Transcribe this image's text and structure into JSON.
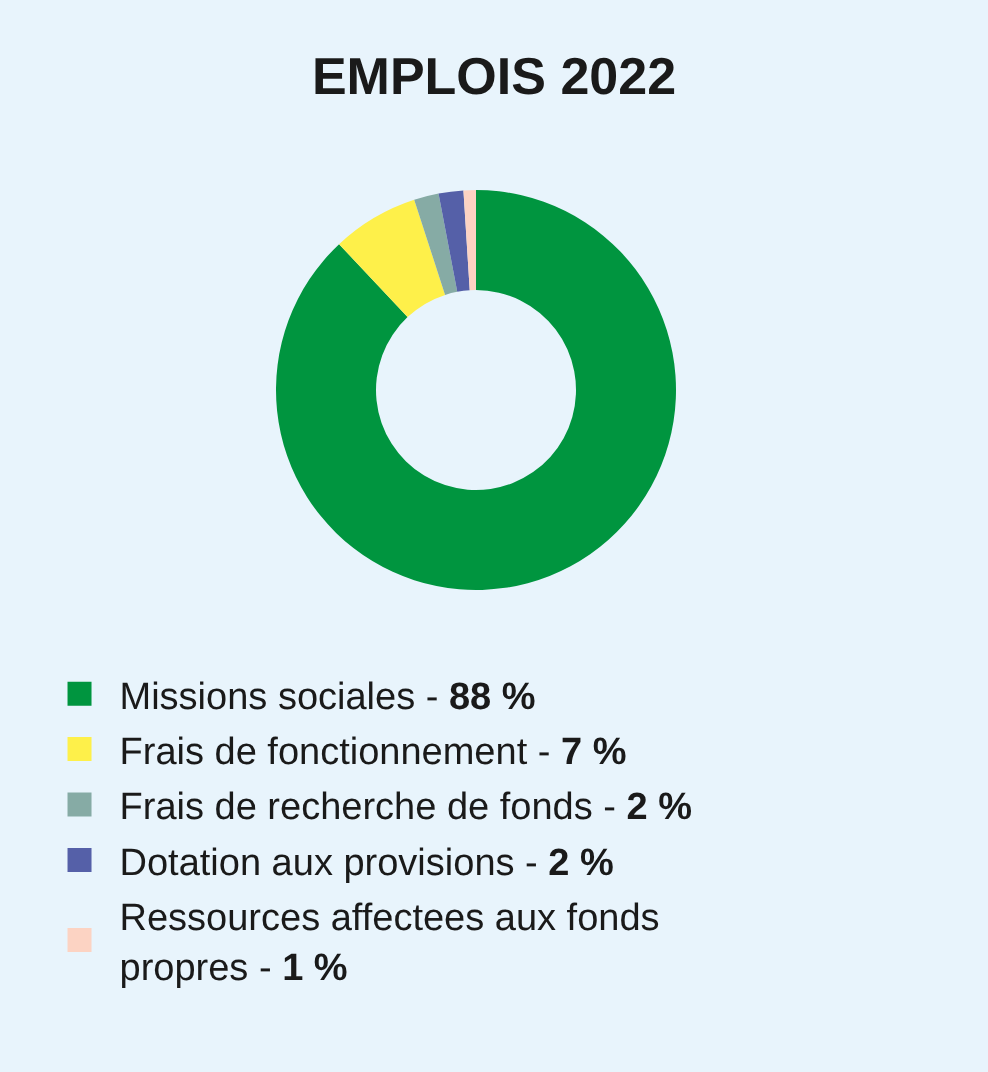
{
  "chart_data": {
    "type": "donut",
    "title": "EMPLOIS 2022",
    "categories": [
      "Missions sociales - 88 %",
      "Frais de fonctionnement - 7 %",
      "Frais de recherche de fonds - 2 %",
      "Dotation aux provisions - 2 %",
      "Ressources affectees aux fonds propres - 1 %"
    ],
    "values": [
      88,
      7,
      2,
      2,
      1
    ],
    "colors": [
      "#00953f",
      "#fef04a",
      "#86aba5",
      "#5560a8",
      "#fcd3c3"
    ],
    "legend": "bottom"
  }
}
